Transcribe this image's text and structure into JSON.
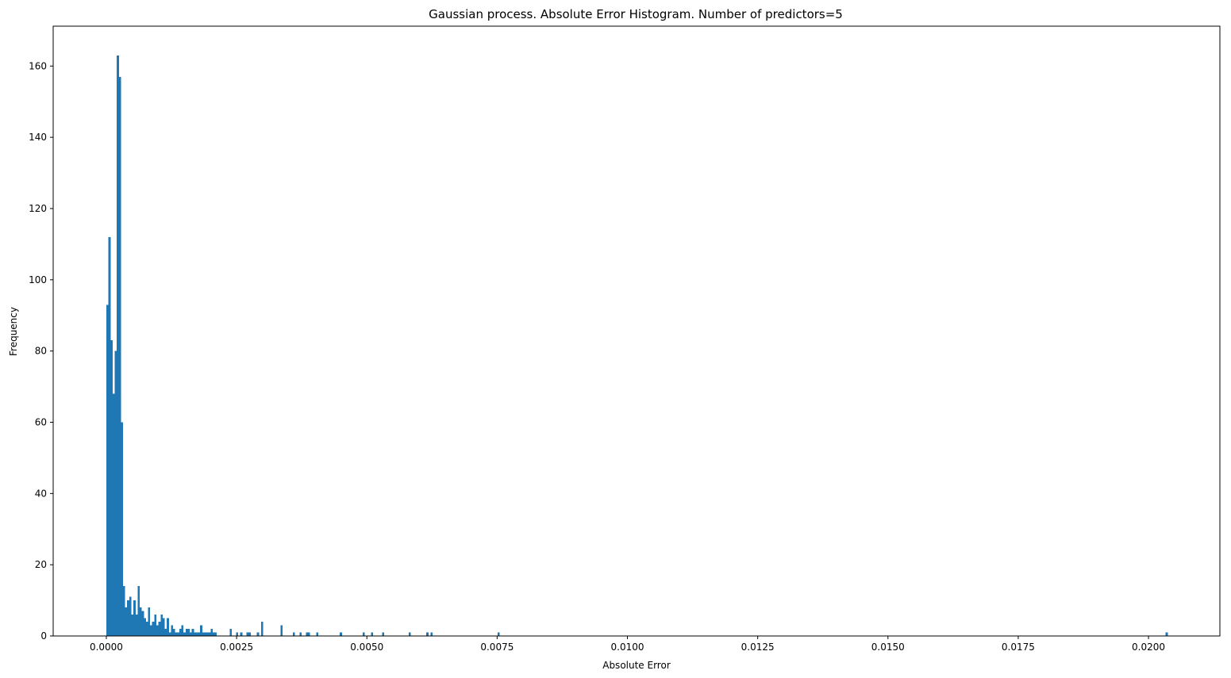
{
  "chart_data": {
    "type": "bar",
    "title": "Gaussian process. Absolute Error Histogram. Number of predictors=5",
    "xlabel": "Absolute Error",
    "ylabel": "Frequency",
    "xlim": [
      -0.00102,
      0.02137
    ],
    "ylim": [
      0,
      171.2
    ],
    "xticks": [
      0.0,
      0.0025,
      0.005,
      0.0075,
      0.01,
      0.0125,
      0.015,
      0.0175,
      0.02
    ],
    "xtick_labels": [
      "0.0000",
      "0.0025",
      "0.0050",
      "0.0075",
      "0.0100",
      "0.0125",
      "0.0150",
      "0.0175",
      "0.0200"
    ],
    "yticks": [
      0,
      20,
      40,
      60,
      80,
      100,
      120,
      140,
      160
    ],
    "ytick_labels": [
      "0",
      "20",
      "40",
      "60",
      "80",
      "100",
      "120",
      "140",
      "160"
    ],
    "bar_color": "#1f77b4",
    "grid": false,
    "series": [
      {
        "bin_width": 4.07e-05,
        "x": [
          0.0,
          4e-05,
          8e-05,
          0.00012,
          0.00016,
          0.0002,
          0.00024,
          0.00028,
          0.00032,
          0.00036,
          0.0004,
          0.00044,
          0.00048,
          0.00052,
          0.00056,
          0.0006,
          0.00064,
          0.00068,
          0.00072,
          0.00076,
          0.0008,
          0.00084,
          0.00088,
          0.00092,
          0.00096,
          0.001,
          0.00104,
          0.00108,
          0.00112,
          0.00116,
          0.0012,
          0.00124,
          0.00128,
          0.00132,
          0.00136,
          0.0014,
          0.00144,
          0.00148,
          0.00152,
          0.00156,
          0.0016,
          0.00164,
          0.00168,
          0.00172,
          0.00176,
          0.0018,
          0.00184,
          0.00188,
          0.00192,
          0.00196,
          0.002,
          0.00204,
          0.00208,
          0.00237,
          0.00249,
          0.00257,
          0.00269,
          0.00273,
          0.00289,
          0.00297,
          0.00334,
          0.00358,
          0.00371,
          0.00383,
          0.00387,
          0.00403,
          0.00448,
          0.00492,
          0.00508,
          0.00529,
          0.0058,
          0.00614,
          0.00622,
          0.00751,
          0.02033
        ],
        "values": [
          93,
          112,
          83,
          68,
          80,
          163,
          157,
          60,
          14,
          8,
          10,
          11,
          6,
          10,
          6,
          14,
          8,
          7,
          5,
          4,
          8,
          3,
          4,
          6,
          3,
          4,
          6,
          5,
          2,
          5,
          1,
          3,
          2,
          1,
          1,
          2,
          3,
          1,
          2,
          2,
          1,
          2,
          1,
          1,
          1,
          3,
          1,
          1,
          1,
          1,
          2,
          1,
          1,
          2,
          1,
          1,
          1,
          1,
          1,
          4,
          3,
          1,
          1,
          1,
          1,
          1,
          1,
          1,
          1,
          1,
          1,
          1,
          1,
          1,
          1
        ]
      }
    ]
  }
}
